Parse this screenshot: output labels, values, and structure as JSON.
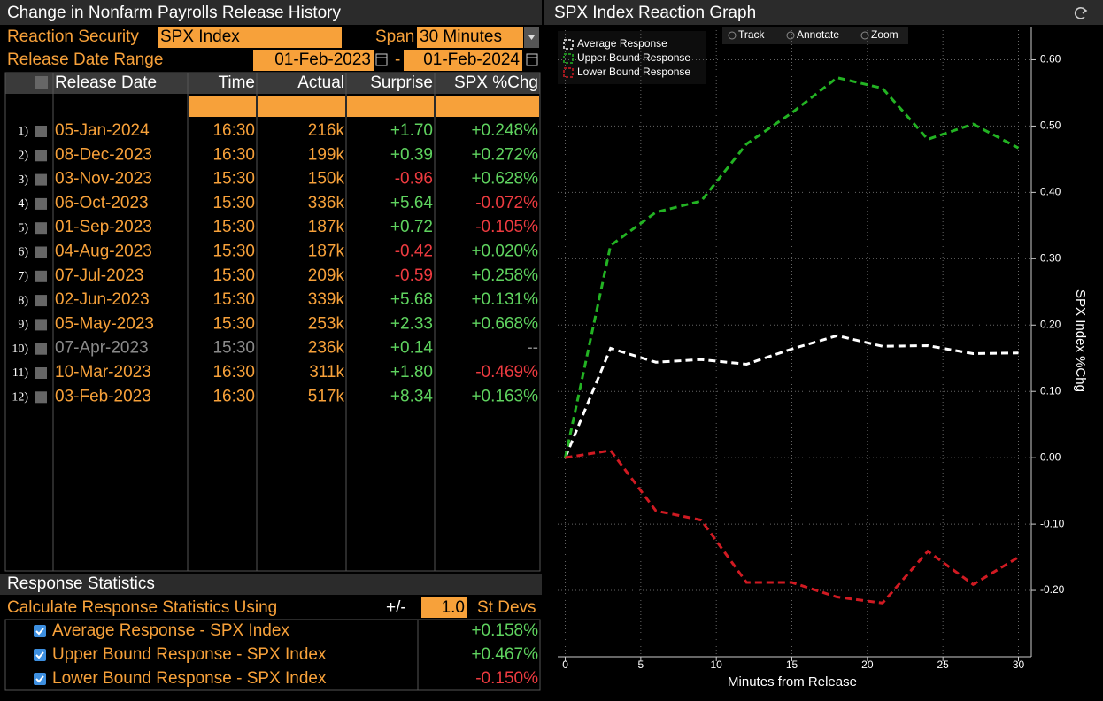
{
  "panel": {
    "title": "Change in Nonfarm Payrolls Release History",
    "reaction_security_label": "Reaction Security",
    "reaction_security": "SPX Index",
    "span_label": "Span",
    "span": "30 Minutes",
    "date_range_label": "Release Date Range",
    "date_from": "01-Feb-2023",
    "date_separator": "-",
    "date_to": "01-Feb-2024",
    "table": {
      "columns": [
        "Release Date",
        "Time",
        "Actual",
        "Surprise",
        "SPX %Chg"
      ],
      "rows": [
        {
          "index": "1)",
          "date": "05-Jan-2024",
          "time": "16:30",
          "actual": "216k",
          "surprise": "+1.70",
          "chg": "+0.248%"
        },
        {
          "index": "2)",
          "date": "08-Dec-2023",
          "time": "16:30",
          "actual": "199k",
          "surprise": "+0.39",
          "chg": "+0.272%"
        },
        {
          "index": "3)",
          "date": "03-Nov-2023",
          "time": "15:30",
          "actual": "150k",
          "surprise": "-0.96",
          "chg": "+0.628%"
        },
        {
          "index": "4)",
          "date": "06-Oct-2023",
          "time": "15:30",
          "actual": "336k",
          "surprise": "+5.64",
          "chg": "-0.072%"
        },
        {
          "index": "5)",
          "date": "01-Sep-2023",
          "time": "15:30",
          "actual": "187k",
          "surprise": "+0.72",
          "chg": "-0.105%"
        },
        {
          "index": "6)",
          "date": "04-Aug-2023",
          "time": "15:30",
          "actual": "187k",
          "surprise": "-0.42",
          "chg": "+0.020%"
        },
        {
          "index": "7)",
          "date": "07-Jul-2023",
          "time": "15:30",
          "actual": "209k",
          "surprise": "-0.59",
          "chg": "+0.258%"
        },
        {
          "index": "8)",
          "date": "02-Jun-2023",
          "time": "15:30",
          "actual": "339k",
          "surprise": "+5.68",
          "chg": "+0.131%"
        },
        {
          "index": "9)",
          "date": "05-May-2023",
          "time": "15:30",
          "actual": "253k",
          "surprise": "+2.33",
          "chg": "+0.668%"
        },
        {
          "index": "10)",
          "date": "07-Apr-2023",
          "time": "15:30",
          "actual": "236k",
          "surprise": "+0.14",
          "chg": "--",
          "inactive": true
        },
        {
          "index": "11)",
          "date": "10-Mar-2023",
          "time": "16:30",
          "actual": "311k",
          "surprise": "+1.80",
          "chg": "-0.469%"
        },
        {
          "index": "12)",
          "date": "03-Feb-2023",
          "time": "16:30",
          "actual": "517k",
          "surprise": "+8.34",
          "chg": "+0.163%"
        }
      ]
    },
    "stats": {
      "title": "Response Statistics",
      "method_label": "Calculate Response Statistics Using",
      "plus_minus": "+/-",
      "st_devs": "1.0",
      "unit": "St Devs",
      "rows": [
        {
          "label": "Average Response - SPX Index",
          "value": "+0.158%"
        },
        {
          "label": "Upper Bound Response - SPX Index",
          "value": "+0.467%"
        },
        {
          "label": "Lower Bound Response - SPX Index",
          "value": "-0.150%"
        }
      ]
    }
  },
  "chart_data": {
    "type": "line",
    "title": "SPX Index Reaction Graph",
    "toolbar": [
      "Track",
      "Annotate",
      "Zoom"
    ],
    "xlabel": "Minutes from Release",
    "ylabel": "SPX Index %Chg",
    "x": [
      0,
      3,
      6,
      9,
      12,
      15,
      18,
      21,
      24,
      27,
      30
    ],
    "series": [
      {
        "name": "Average Response",
        "color": "#ffffff",
        "values": [
          0,
          0.165,
          0.144,
          0.148,
          0.141,
          0.164,
          0.184,
          0.168,
          0.169,
          0.157,
          0.158
        ]
      },
      {
        "name": "Upper Bound Response",
        "color": "#23b323",
        "values": [
          0,
          0.32,
          0.37,
          0.387,
          0.473,
          0.52,
          0.573,
          0.557,
          0.48,
          0.503,
          0.467
        ]
      },
      {
        "name": "Lower Bound Response",
        "color": "#d01a22",
        "values": [
          0,
          0.011,
          -0.08,
          -0.094,
          -0.188,
          -0.188,
          -0.21,
          -0.219,
          -0.141,
          -0.191,
          -0.15
        ]
      }
    ],
    "xlim": [
      -0.5,
      30.85
    ],
    "ylim": [
      -0.3,
      0.65
    ],
    "xticks": [
      0,
      5,
      10,
      15,
      20,
      25,
      30
    ],
    "yticks": [
      {
        "value": -0.2,
        "label": "-0.20"
      },
      {
        "value": -0.1,
        "label": "-0.10"
      },
      {
        "value": 0,
        "label": "0.00"
      },
      {
        "value": 0.1,
        "label": "0.10"
      },
      {
        "value": 0.2,
        "label": "0.20"
      },
      {
        "value": 0.3,
        "label": "0.30"
      },
      {
        "value": 0.4,
        "label": "0.40"
      },
      {
        "value": 0.5,
        "label": "0.50"
      },
      {
        "value": 0.6,
        "label": "0.60"
      }
    ],
    "grid": true,
    "legend": "upper left"
  }
}
